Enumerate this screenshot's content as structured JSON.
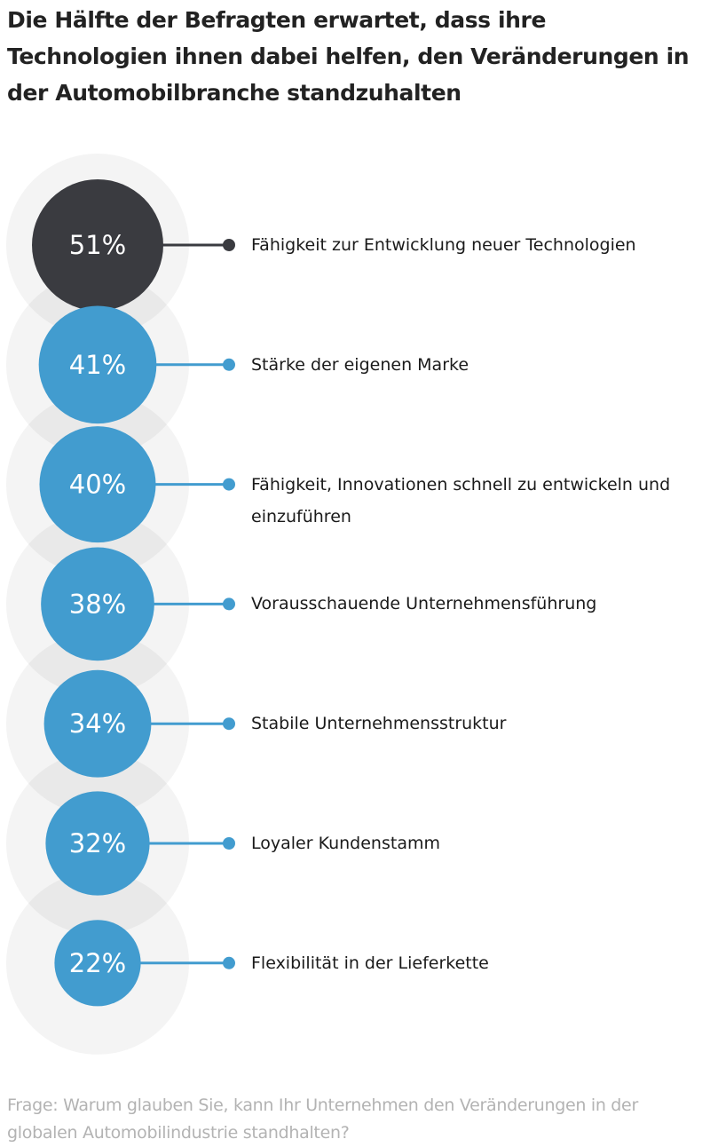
{
  "title": "Die Hälfte der Befragten erwartet, dass ihre Technologien ihnen dabei helfen, den Veränderungen in der Automobilbranche standzuhalten",
  "footnote": "Frage: Warum glauben Sie, kann Ihr Unternehmen den Veränderungen in der globalen Automobilindustrie standhalten?",
  "colors": {
    "highlight": "#3a3b40",
    "accent": "#429ccf",
    "halo": "#f3f3f3"
  },
  "chart_data": {
    "type": "bubble-list",
    "unit": "%",
    "items": [
      {
        "value": 51,
        "label_value": "51%",
        "label": "Fähigkeit zur Entwicklung neuer Technologien",
        "highlight": true
      },
      {
        "value": 41,
        "label_value": "41%",
        "label": "Stärke der eigenen Marke",
        "highlight": false
      },
      {
        "value": 40,
        "label_value": "40%",
        "label": "Fähigkeit, Innovationen schnell zu entwickeln und einzuführen",
        "highlight": false
      },
      {
        "value": 38,
        "label_value": "38%",
        "label": "Vorausschauende Unternehmensführung",
        "highlight": false
      },
      {
        "value": 34,
        "label_value": "34%",
        "label": "Stabile Unternehmensstruktur",
        "highlight": false
      },
      {
        "value": 32,
        "label_value": "32%",
        "label": "Loyaler Kundenstamm",
        "highlight": false
      },
      {
        "value": 22,
        "label_value": "22%",
        "label": "Flexibilität in der Lieferkette",
        "highlight": false
      }
    ]
  }
}
